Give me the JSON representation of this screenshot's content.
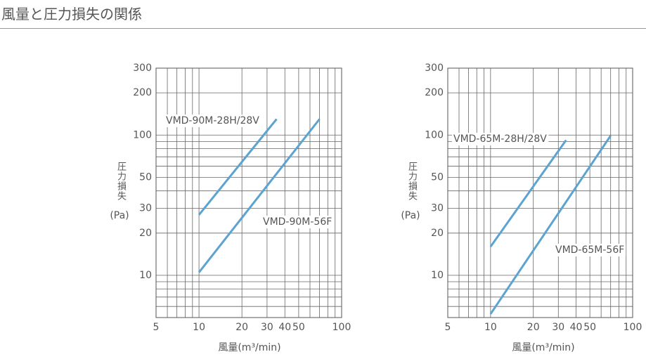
{
  "title": "風量と圧力損失の関係",
  "chart_data": [
    {
      "type": "line",
      "xlog": true,
      "ylog": true,
      "xlim": [
        5,
        100
      ],
      "ylim": [
        5,
        300
      ],
      "xticks": [
        5,
        10,
        20,
        30,
        40,
        50,
        100
      ],
      "yticks": [
        10,
        20,
        30,
        50,
        100,
        200,
        300
      ],
      "xgrid": [
        5,
        6,
        7,
        8,
        9,
        10,
        20,
        30,
        40,
        50,
        60,
        70,
        80,
        90,
        100
      ],
      "ygrid": [
        5,
        6,
        7,
        8,
        9,
        10,
        20,
        30,
        40,
        50,
        60,
        70,
        80,
        90,
        100,
        200,
        300
      ],
      "x_label": "風量(m³/min)",
      "y_label": "圧力損失",
      "y_unit": "(Pa)",
      "series": [
        {
          "name": "VMD-90M-28H/28V",
          "color": "#5ba3d0",
          "x": [
            10,
            35
          ],
          "values": [
            27,
            130
          ]
        },
        {
          "name": "VMD-90M-56F",
          "color": "#5ba3d0",
          "x": [
            10,
            70
          ],
          "values": [
            10.5,
            130
          ]
        }
      ]
    },
    {
      "type": "line",
      "xlog": true,
      "ylog": true,
      "xlim": [
        5,
        100
      ],
      "ylim": [
        5,
        300
      ],
      "xticks": [
        5,
        10,
        20,
        30,
        40,
        50,
        100
      ],
      "yticks": [
        10,
        20,
        30,
        50,
        100,
        200,
        300
      ],
      "xgrid": [
        5,
        6,
        7,
        8,
        9,
        10,
        20,
        30,
        40,
        50,
        60,
        70,
        80,
        90,
        100
      ],
      "ygrid": [
        5,
        6,
        7,
        8,
        9,
        10,
        20,
        30,
        40,
        50,
        60,
        70,
        80,
        90,
        100,
        200,
        300
      ],
      "x_label": "風量(m³/min)",
      "y_label": "圧力損失",
      "y_unit": "(Pa)",
      "series": [
        {
          "name": "VMD-65M-28H/28V",
          "color": "#5ba3d0",
          "x": [
            10,
            34
          ],
          "values": [
            16,
            92
          ]
        },
        {
          "name": "VMD-65M-56F",
          "color": "#5ba3d0",
          "x": [
            10,
            70
          ],
          "values": [
            5.3,
            99
          ]
        }
      ]
    }
  ]
}
